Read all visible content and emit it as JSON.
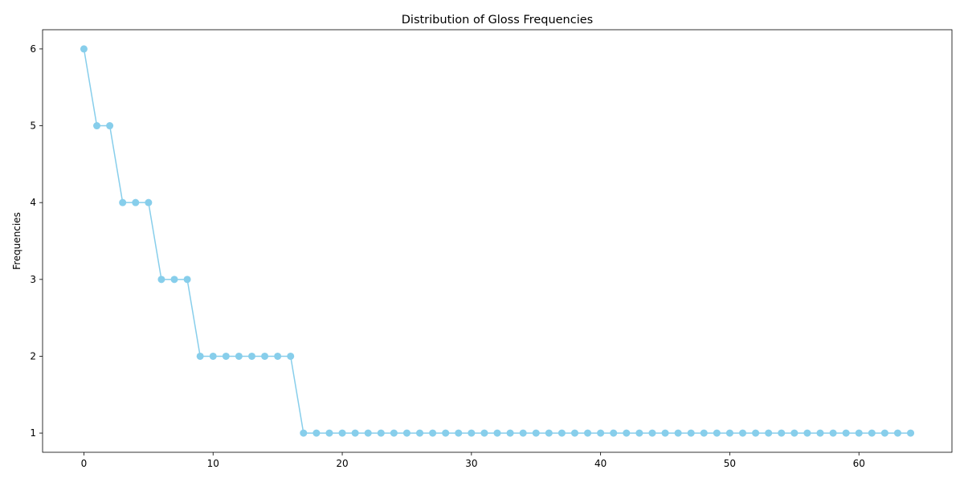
{
  "chart_data": {
    "type": "line",
    "title": "Distribution of Gloss Frequencies",
    "xlabel": "",
    "ylabel": "Frequencies",
    "x": [
      0,
      1,
      2,
      3,
      4,
      5,
      6,
      7,
      8,
      9,
      10,
      11,
      12,
      13,
      14,
      15,
      16,
      17,
      18,
      19,
      20,
      21,
      22,
      23,
      24,
      25,
      26,
      27,
      28,
      29,
      30,
      31,
      32,
      33,
      34,
      35,
      36,
      37,
      38,
      39,
      40,
      41,
      42,
      43,
      44,
      45,
      46,
      47,
      48,
      49,
      50,
      51,
      52,
      53,
      54,
      55,
      56,
      57,
      58,
      59,
      60,
      61,
      62,
      63,
      64
    ],
    "series": [
      {
        "values": [
          6,
          5,
          5,
          4,
          4,
          4,
          3,
          3,
          3,
          2,
          2,
          2,
          2,
          2,
          2,
          2,
          2,
          1,
          1,
          1,
          1,
          1,
          1,
          1,
          1,
          1,
          1,
          1,
          1,
          1,
          1,
          1,
          1,
          1,
          1,
          1,
          1,
          1,
          1,
          1,
          1,
          1,
          1,
          1,
          1,
          1,
          1,
          1,
          1,
          1,
          1,
          1,
          1,
          1,
          1,
          1,
          1,
          1,
          1,
          1,
          1,
          1,
          1,
          1,
          1
        ],
        "color": "#87CEEB",
        "marker": "circle"
      }
    ],
    "xlim": [
      -3.2,
      67.2
    ],
    "ylim": [
      0.75,
      6.25
    ],
    "xticks": [
      0,
      10,
      20,
      30,
      40,
      50,
      60
    ],
    "yticks": [
      1,
      2,
      3,
      4,
      5,
      6
    ],
    "grid": false,
    "legend": "none"
  }
}
